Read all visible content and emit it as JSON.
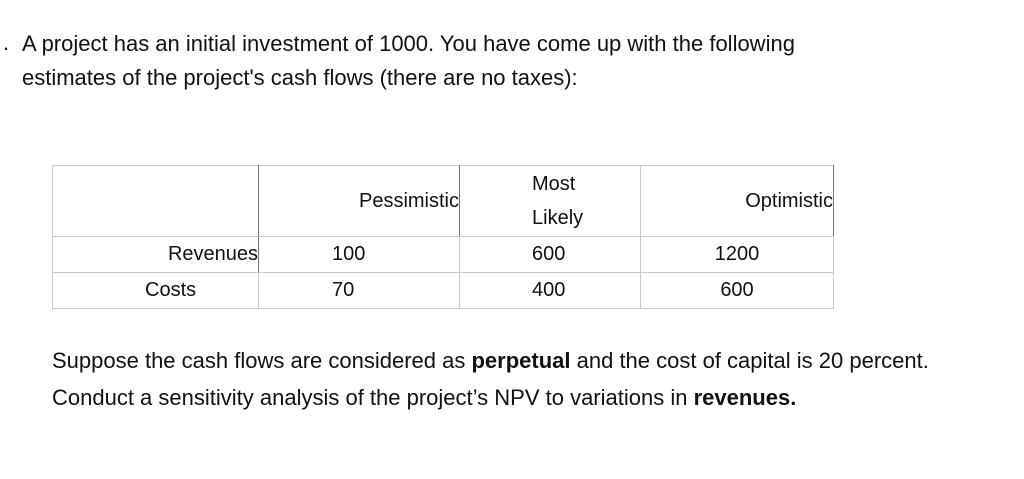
{
  "question": {
    "marker": ".",
    "lines": [
      "A project has an initial investment of 1000. You have come up with the following",
      "estimates of the project's cash flows (there are no taxes):"
    ]
  },
  "table": {
    "headers": [
      "Pessimistic",
      "Most Likely",
      "Optimistic"
    ],
    "rows": [
      [
        "Revenues",
        100,
        600,
        1200
      ],
      [
        "Costs",
        70,
        400,
        600
      ]
    ]
  },
  "paragraph": {
    "parts": [
      "Suppose the cash flows are considered as ",
      "perpetual",
      " and the cost of capital is 20 percent. Conduct a sensitivity analysis of the project’s NPV to variations in ",
      "revenues."
    ]
  }
}
